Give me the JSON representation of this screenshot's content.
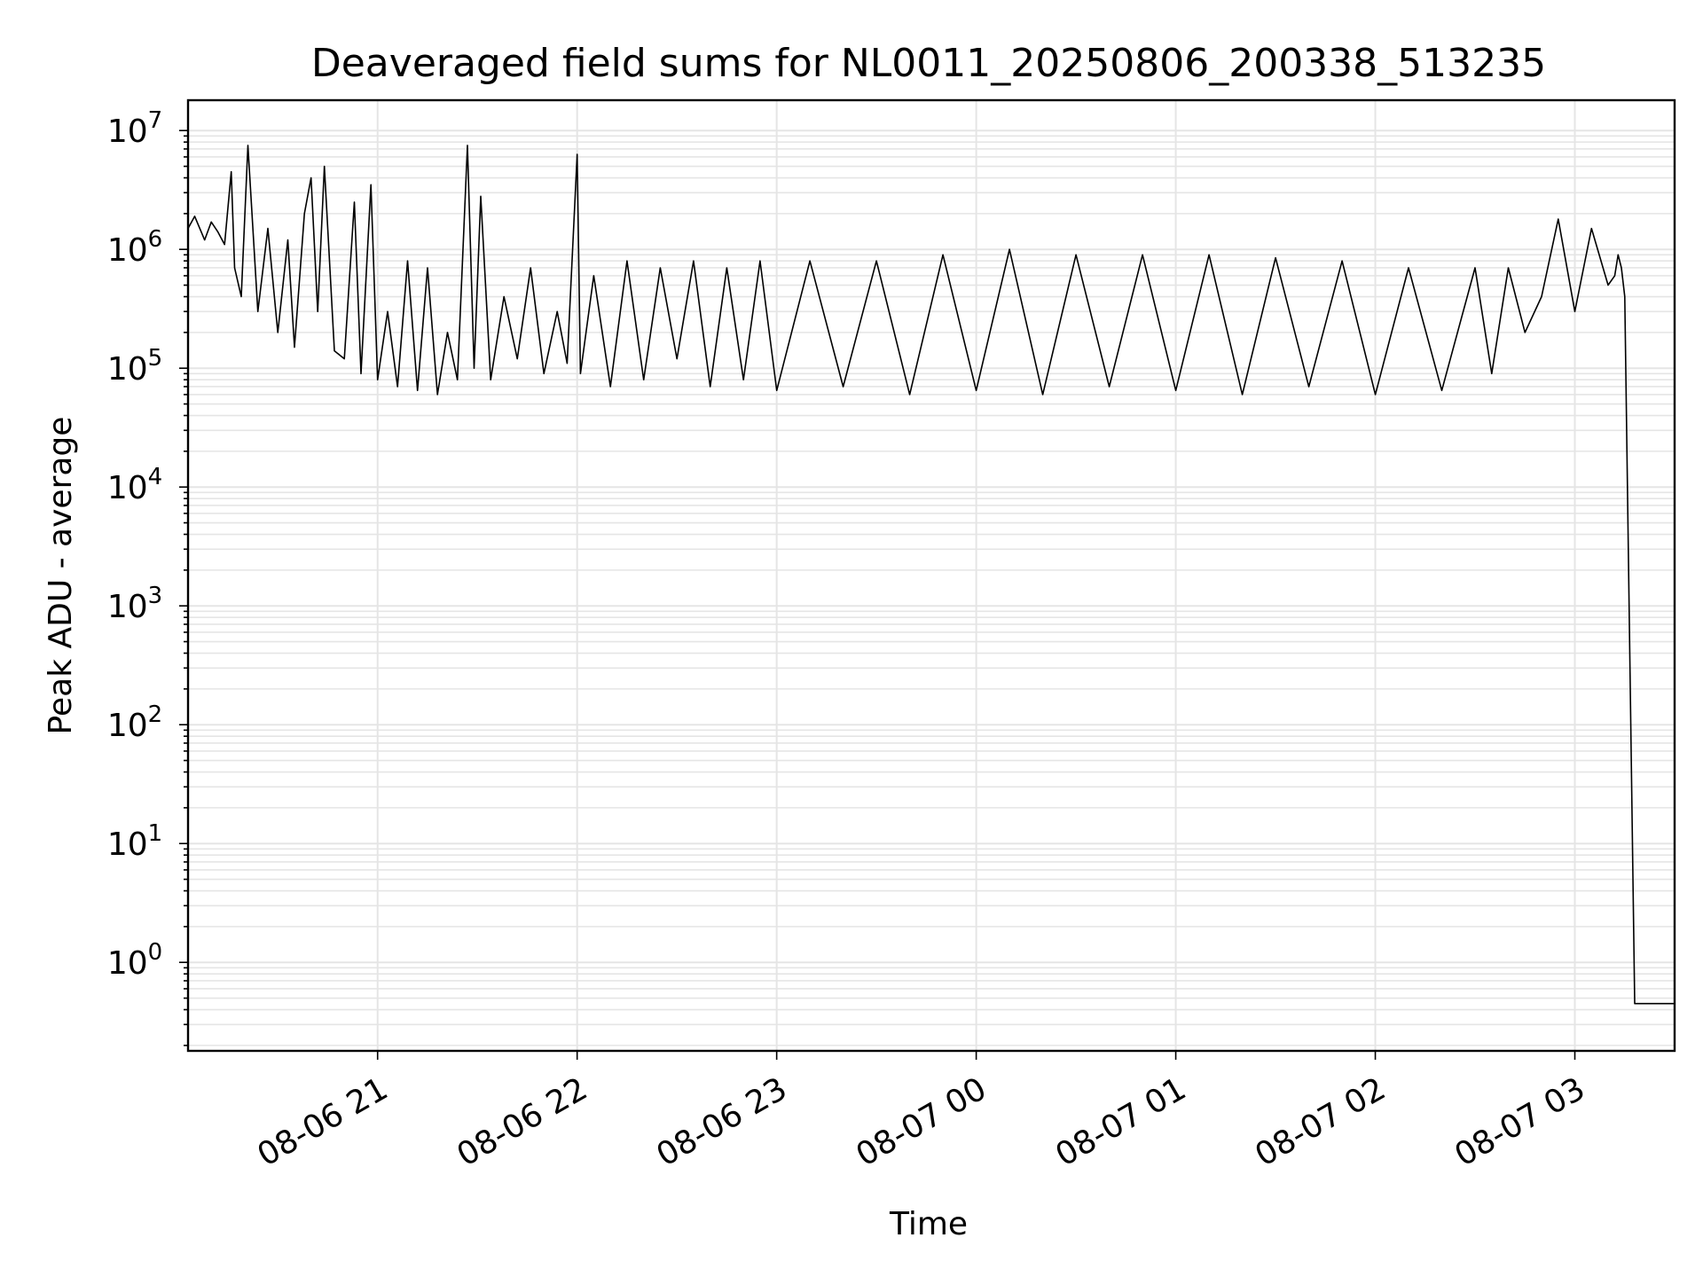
{
  "chart_data": {
    "type": "line",
    "title": "Deaveraged field sums for NL0011_20250806_200338_513235",
    "xlabel": "Time",
    "ylabel": "Peak ADU - average",
    "yscale": "log",
    "grid": true,
    "legend": "none",
    "line_color": "#000000",
    "grid_color": "#e5e5e5",
    "x_ticks": [
      "08-06 21",
      "08-06 22",
      "08-06 23",
      "08-07 00",
      "08-07 01",
      "08-07 02",
      "08-07 03"
    ],
    "y_ticks": [
      {
        "base": "10",
        "exp": "0"
      },
      {
        "base": "10",
        "exp": "1"
      },
      {
        "base": "10",
        "exp": "2"
      },
      {
        "base": "10",
        "exp": "3"
      },
      {
        "base": "10",
        "exp": "4"
      },
      {
        "base": "10",
        "exp": "5"
      },
      {
        "base": "10",
        "exp": "6"
      },
      {
        "base": "10",
        "exp": "7"
      }
    ],
    "xlim": [
      "2025-08-06 20:03",
      "2025-08-07 03:30"
    ],
    "ylim": [
      0.18,
      18000000
    ],
    "series": [
      {
        "x": [
          "2025-08-06 20:03",
          "2025-08-06 20:05",
          "2025-08-06 20:08",
          "2025-08-06 20:10",
          "2025-08-06 20:12",
          "2025-08-06 20:14",
          "2025-08-06 20:16",
          "2025-08-06 20:17",
          "2025-08-06 20:19",
          "2025-08-06 20:21",
          "2025-08-06 20:24",
          "2025-08-06 20:27",
          "2025-08-06 20:30",
          "2025-08-06 20:33",
          "2025-08-06 20:35",
          "2025-08-06 20:38",
          "2025-08-06 20:40",
          "2025-08-06 20:42",
          "2025-08-06 20:44",
          "2025-08-06 20:47",
          "2025-08-06 20:50",
          "2025-08-06 20:53",
          "2025-08-06 20:55",
          "2025-08-06 20:58",
          "2025-08-06 21:00",
          "2025-08-06 21:03",
          "2025-08-06 21:06",
          "2025-08-06 21:09",
          "2025-08-06 21:12",
          "2025-08-06 21:15",
          "2025-08-06 21:18",
          "2025-08-06 21:21",
          "2025-08-06 21:24",
          "2025-08-06 21:27",
          "2025-08-06 21:29",
          "2025-08-06 21:31",
          "2025-08-06 21:34",
          "2025-08-06 21:38",
          "2025-08-06 21:42",
          "2025-08-06 21:46",
          "2025-08-06 21:50",
          "2025-08-06 21:54",
          "2025-08-06 21:57",
          "2025-08-06 22:00",
          "2025-08-06 22:01",
          "2025-08-06 22:05",
          "2025-08-06 22:10",
          "2025-08-06 22:15",
          "2025-08-06 22:20",
          "2025-08-06 22:25",
          "2025-08-06 22:30",
          "2025-08-06 22:35",
          "2025-08-06 22:40",
          "2025-08-06 22:45",
          "2025-08-06 22:50",
          "2025-08-06 22:55",
          "2025-08-06 23:00",
          "2025-08-06 23:10",
          "2025-08-06 23:20",
          "2025-08-06 23:30",
          "2025-08-06 23:40",
          "2025-08-06 23:50",
          "2025-08-07 00:00",
          "2025-08-07 00:10",
          "2025-08-07 00:20",
          "2025-08-07 00:30",
          "2025-08-07 00:40",
          "2025-08-07 00:50",
          "2025-08-07 01:00",
          "2025-08-07 01:10",
          "2025-08-07 01:20",
          "2025-08-07 01:30",
          "2025-08-07 01:40",
          "2025-08-07 01:50",
          "2025-08-07 02:00",
          "2025-08-07 02:10",
          "2025-08-07 02:20",
          "2025-08-07 02:30",
          "2025-08-07 02:35",
          "2025-08-07 02:40",
          "2025-08-07 02:45",
          "2025-08-07 02:50",
          "2025-08-07 02:55",
          "2025-08-07 03:00",
          "2025-08-07 03:05",
          "2025-08-07 03:10",
          "2025-08-07 03:12",
          "2025-08-07 03:13",
          "2025-08-07 03:14",
          "2025-08-07 03:15",
          "2025-08-07 03:18",
          "2025-08-07 03:22",
          "2025-08-07 03:26",
          "2025-08-07 03:30"
        ],
        "values": [
          1500000,
          1900000,
          1200000,
          1700000,
          1400000,
          1100000,
          4500000,
          700000,
          400000,
          7500000,
          300000,
          1500000,
          200000,
          1200000,
          150000,
          2000000,
          4000000,
          300000,
          5000000,
          140000,
          120000,
          2500000,
          90000,
          3500000,
          80000,
          300000,
          70000,
          800000,
          65000,
          700000,
          60000,
          200000,
          80000,
          7500000,
          100000,
          2800000,
          80000,
          400000,
          120000,
          700000,
          90000,
          300000,
          110000,
          6300000,
          90000,
          600000,
          70000,
          800000,
          80000,
          700000,
          120000,
          800000,
          70000,
          700000,
          80000,
          800000,
          65000,
          800000,
          70000,
          800000,
          60000,
          900000,
          65000,
          1000000,
          60000,
          900000,
          70000,
          900000,
          65000,
          900000,
          60000,
          850000,
          70000,
          800000,
          60000,
          700000,
          65000,
          700000,
          90000,
          700000,
          200000,
          400000,
          1800000,
          300000,
          1500000,
          500000,
          600000,
          900000,
          700000,
          400000,
          0.45,
          0.45,
          0.45,
          0.45
        ]
      }
    ]
  }
}
